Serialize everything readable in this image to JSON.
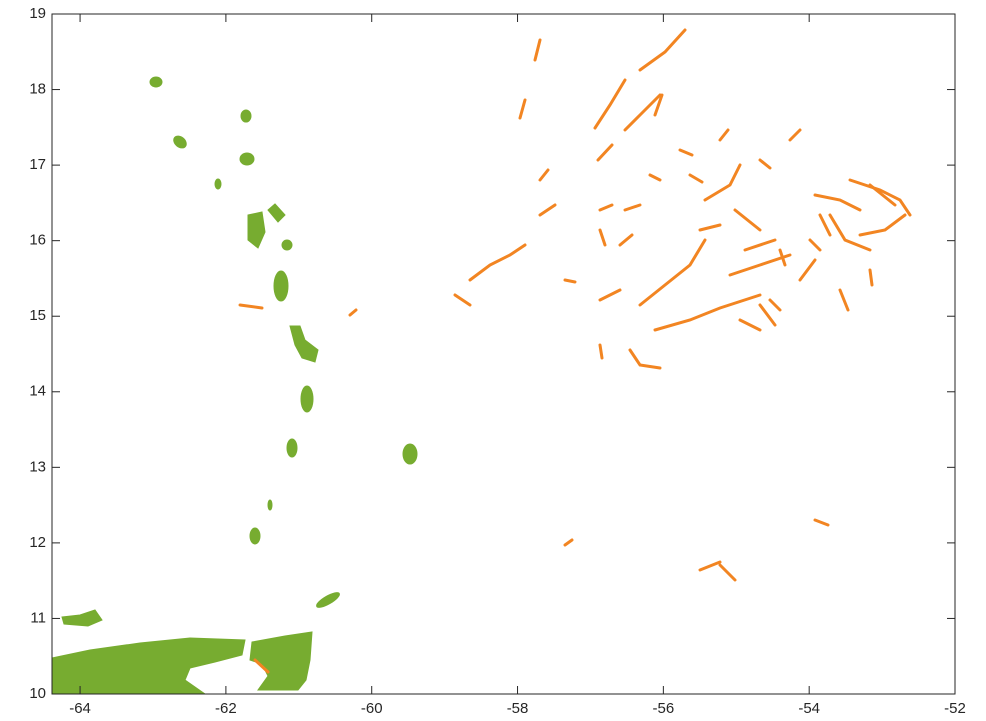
{
  "chart_data": {
    "type": "map",
    "xlim": [
      -64.385,
      -52
    ],
    "xticks": [
      -64,
      -62,
      -60,
      -58,
      -56,
      -54,
      -52
    ],
    "ylim": [
      10,
      19
    ],
    "yticks": [
      10,
      11,
      12,
      13,
      14,
      15,
      16,
      17,
      18,
      19
    ]
  }
}
